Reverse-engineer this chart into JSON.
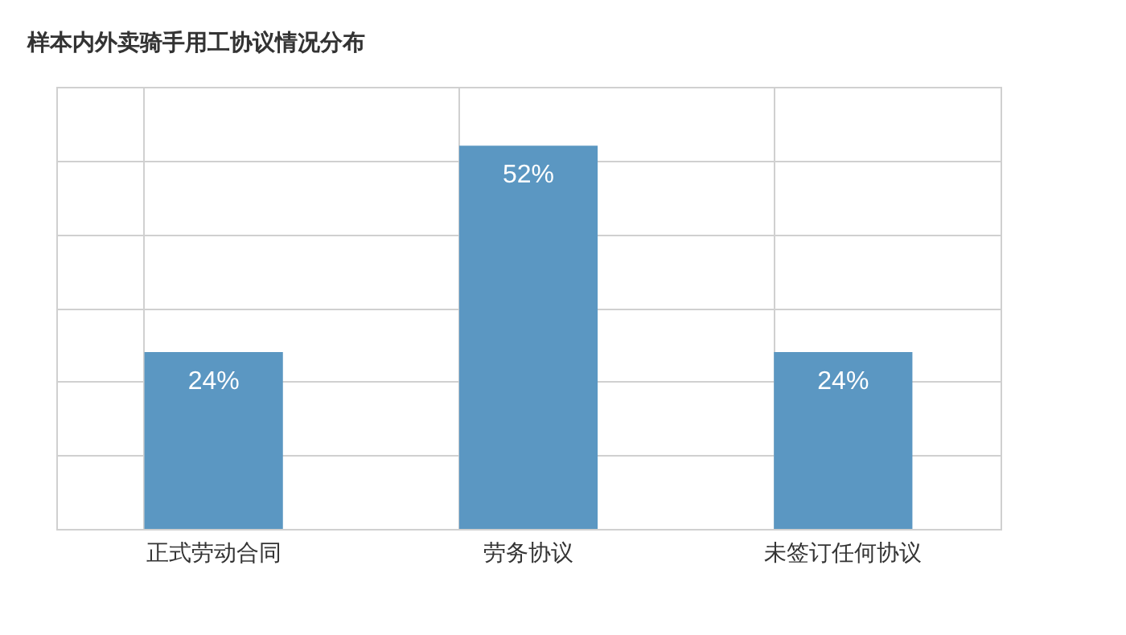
{
  "chart_data": {
    "type": "bar",
    "title": "样本内外卖骑手用工协议情况分布",
    "categories": [
      "正式劳动合同",
      "劳务协议",
      "未签订任何协议"
    ],
    "values": [
      24,
      52,
      24
    ],
    "value_labels": [
      "24%",
      "52%",
      "24%"
    ],
    "color": "#5b97c2",
    "ylim": [
      0,
      60
    ],
    "yticks": [
      {
        "value": 0,
        "label": null
      },
      {
        "value": 10,
        "label": null
      },
      {
        "value": 20,
        "label": null
      },
      {
        "value": 30,
        "label": null
      },
      {
        "value": 40,
        "label": null
      },
      {
        "value": 50,
        "label": null
      },
      {
        "value": 60,
        "label": null
      }
    ],
    "tick_labels": "x",
    "grid": true
  }
}
